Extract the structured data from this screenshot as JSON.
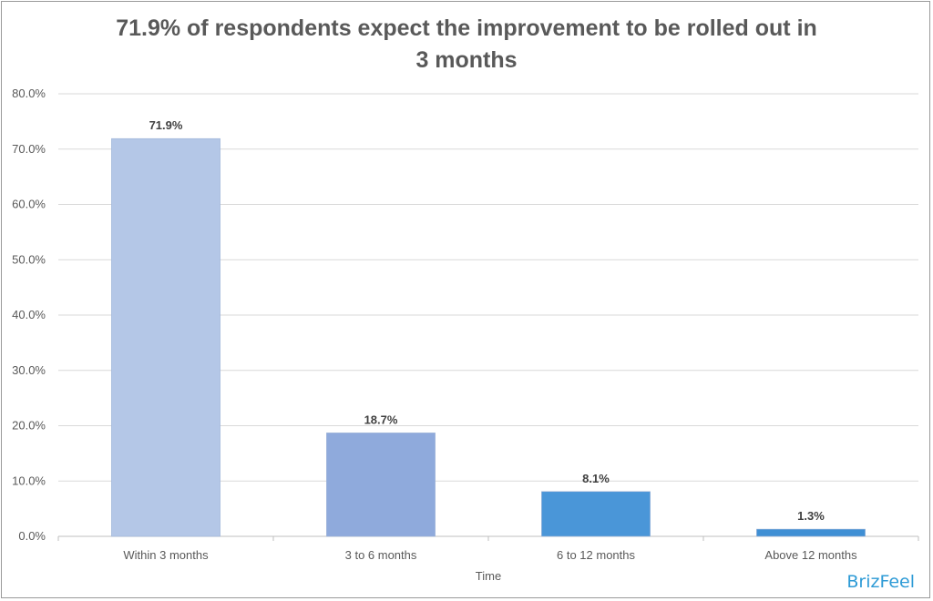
{
  "chart_data": {
    "type": "bar",
    "title_line1": "71.9% of respondents expect the improvement to be rolled out in",
    "title_line2": "3 months",
    "xlabel": "Time",
    "ylabel": "",
    "categories": [
      "Within 3 months",
      "3 to 6 months",
      "6 to 12 months",
      "Above 12 months"
    ],
    "values": [
      71.9,
      18.7,
      8.1,
      1.3
    ],
    "data_labels": [
      "71.9%",
      "18.7%",
      "8.1%",
      "1.3%"
    ],
    "y_ticks": [
      "0.0%",
      "10.0%",
      "20.0%",
      "30.0%",
      "40.0%",
      "50.0%",
      "60.0%",
      "70.0%",
      "80.0%"
    ],
    "ylim": [
      0,
      80
    ],
    "grid": true,
    "legend": "none",
    "bar_colors": [
      "#b4c7e7",
      "#8faadc",
      "#4a96d8",
      "#3f8fd4"
    ]
  },
  "brand": "BrizFeel"
}
